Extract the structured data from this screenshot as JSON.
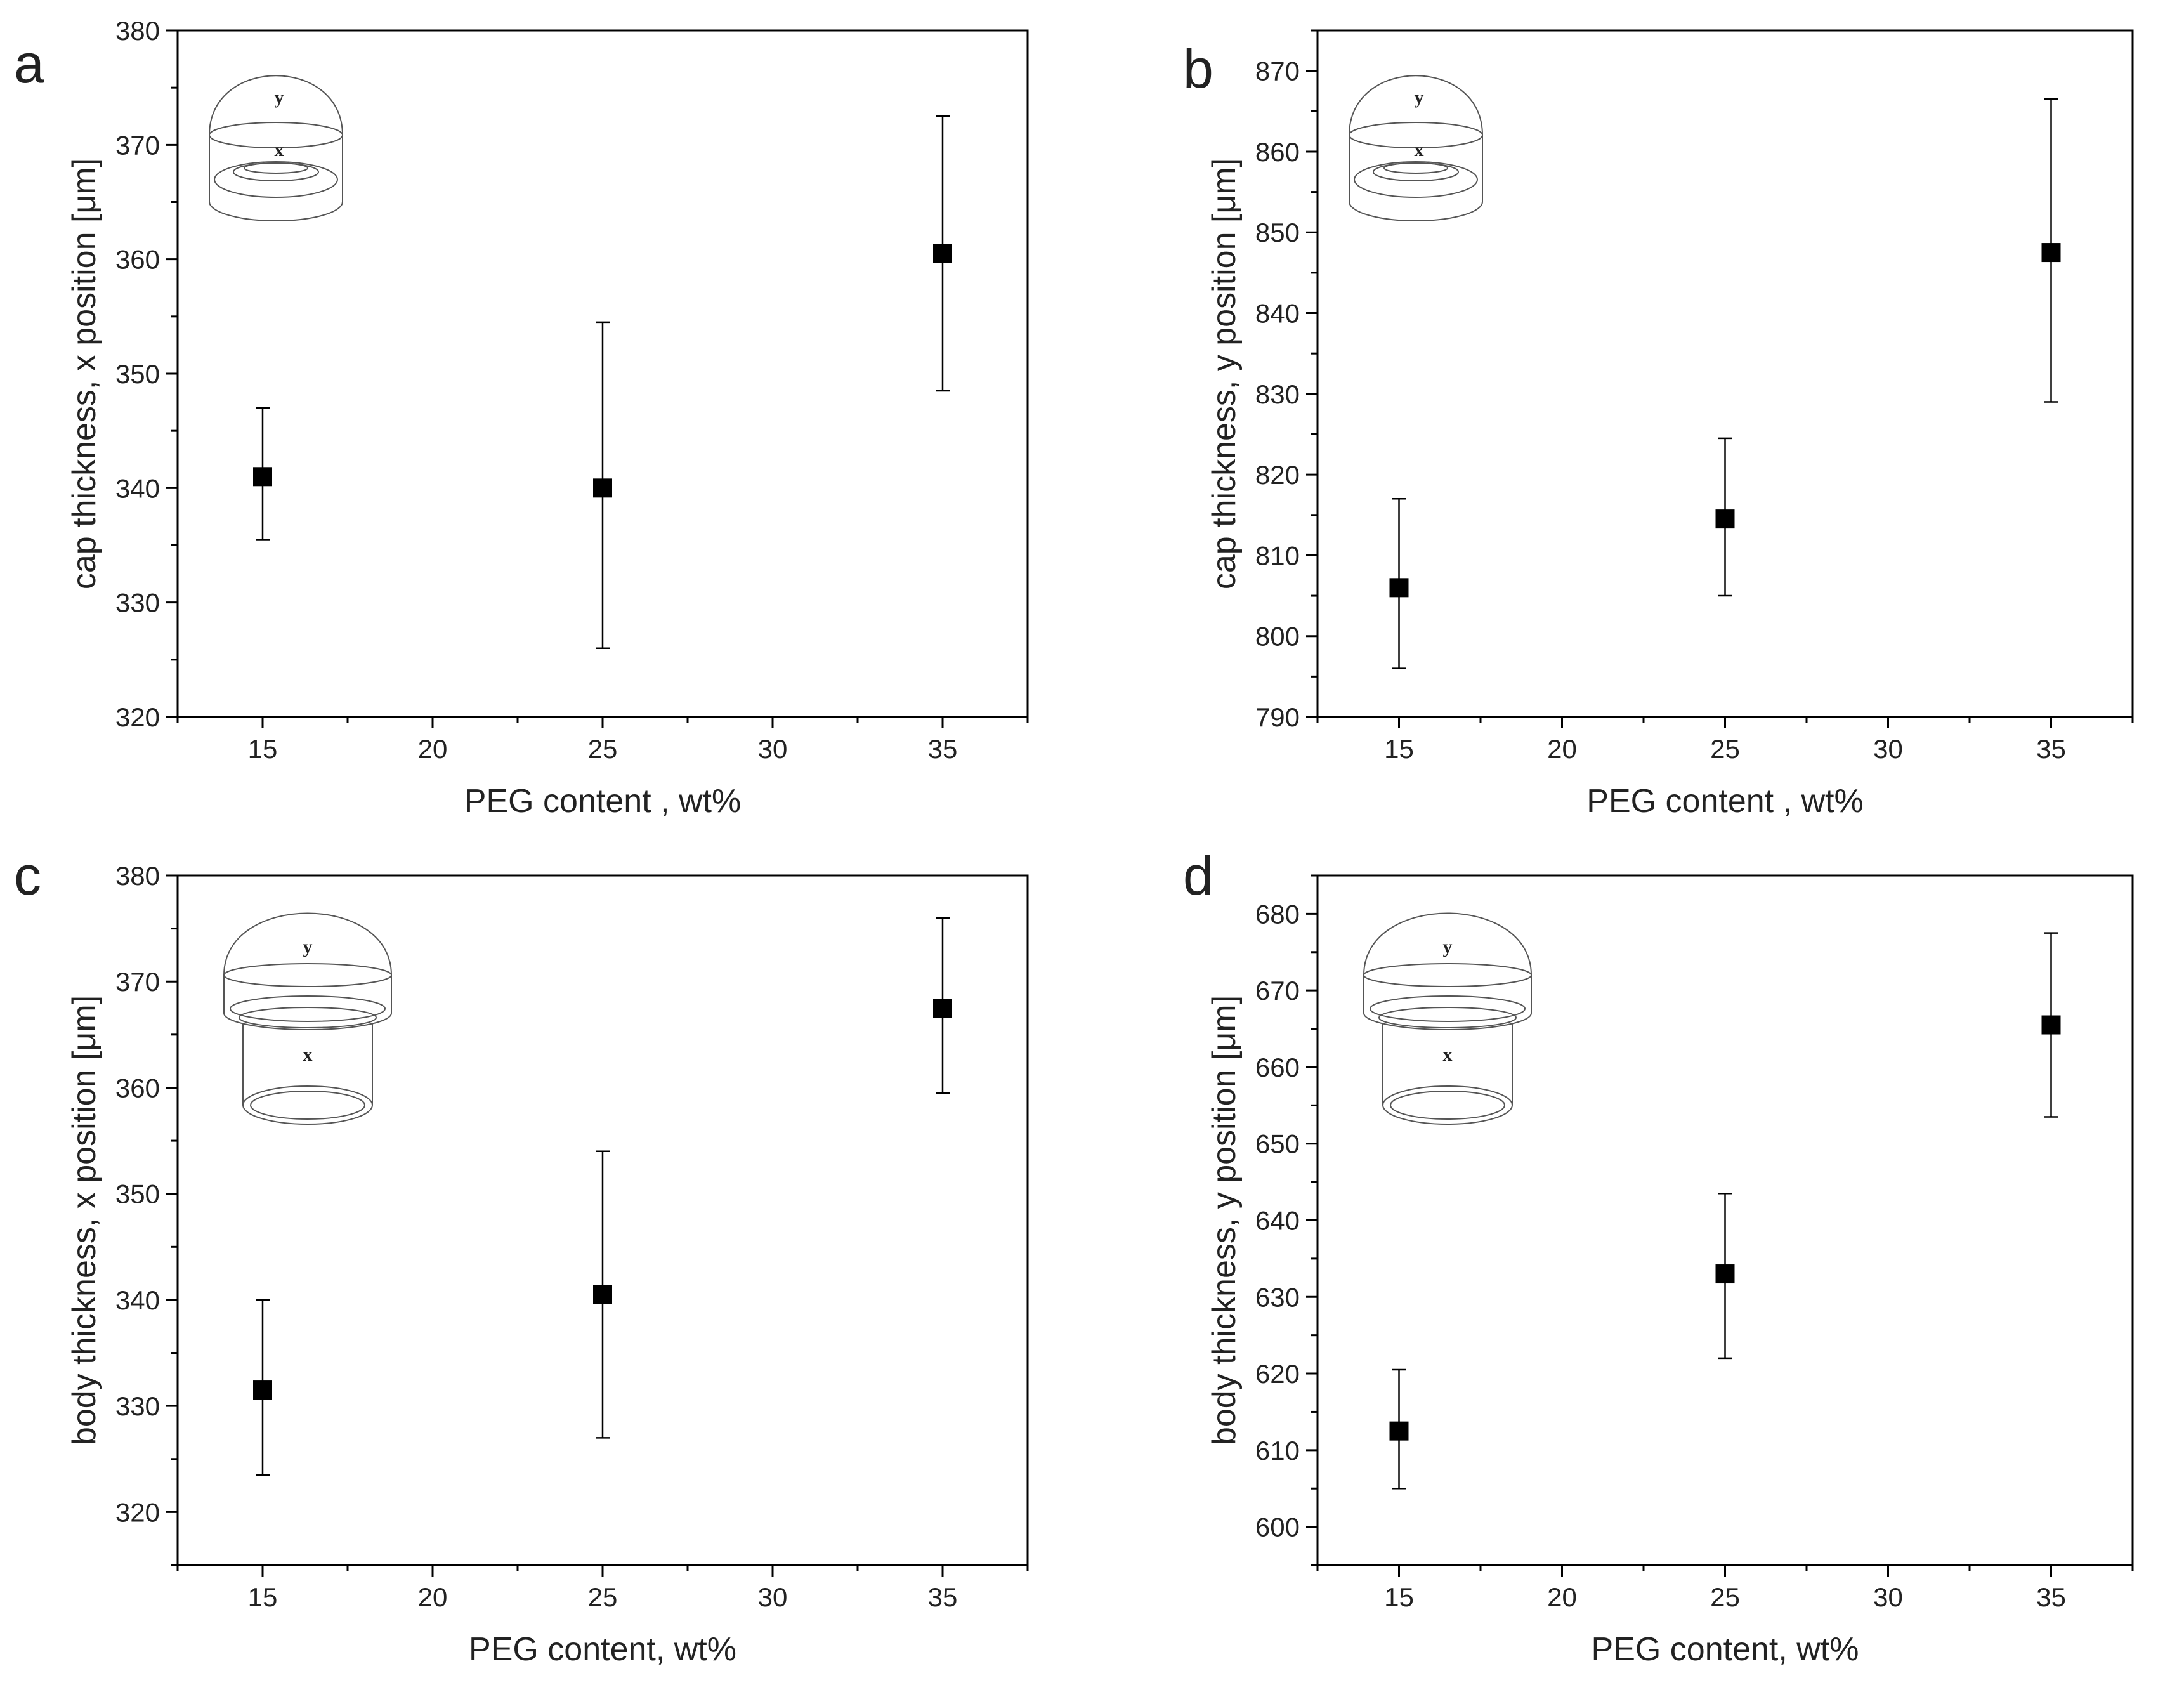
{
  "chart_data": [
    {
      "type": "scatter",
      "panel_label": "a",
      "xlabel": "PEG content , wt%",
      "ylabel": "cap thickness, x position [μm]",
      "xlim": [
        12.5,
        37.5
      ],
      "ylim": [
        320,
        380
      ],
      "x_ticks": [
        15,
        20,
        25,
        30,
        35
      ],
      "y_ticks": [
        320,
        330,
        340,
        350,
        360,
        370,
        380
      ],
      "x": [
        15,
        25,
        35
      ],
      "y": [
        341,
        340,
        360.5
      ],
      "err_low": [
        335.5,
        326,
        348.5
      ],
      "err_high": [
        347,
        354.5,
        372.5
      ],
      "inset": {
        "kind": "cap",
        "labels": [
          "y",
          "x"
        ]
      }
    },
    {
      "type": "scatter",
      "panel_label": "b",
      "xlabel": "PEG content , wt%",
      "ylabel": "cap thickness, y position [μm]",
      "xlim": [
        12.5,
        37.5
      ],
      "ylim": [
        790,
        875
      ],
      "x_ticks": [
        15,
        20,
        25,
        30,
        35
      ],
      "y_ticks": [
        790,
        800,
        810,
        820,
        830,
        840,
        850,
        860,
        870
      ],
      "x": [
        15,
        25,
        35
      ],
      "y": [
        806,
        814.5,
        847.5
      ],
      "err_low": [
        796,
        805,
        829
      ],
      "err_high": [
        817,
        824.5,
        866.5
      ],
      "inset": {
        "kind": "cap",
        "labels": [
          "y",
          "x"
        ]
      }
    },
    {
      "type": "scatter",
      "panel_label": "c",
      "xlabel": "PEG content, wt%",
      "ylabel": "body thickness, x position [μm]",
      "xlim": [
        12.5,
        37.5
      ],
      "ylim": [
        315,
        380
      ],
      "x_ticks": [
        15,
        20,
        25,
        30,
        35
      ],
      "y_ticks": [
        320,
        330,
        340,
        350,
        360,
        370,
        380
      ],
      "x": [
        15,
        25,
        35
      ],
      "y": [
        331.5,
        340.5,
        367.5
      ],
      "err_low": [
        323.5,
        327,
        359.5
      ],
      "err_high": [
        340,
        354,
        376
      ],
      "inset": {
        "kind": "body",
        "labels": [
          "y",
          "x"
        ]
      }
    },
    {
      "type": "scatter",
      "panel_label": "d",
      "xlabel": "PEG content, wt%",
      "ylabel": "body thickness, y position [μm]",
      "xlim": [
        12.5,
        37.5
      ],
      "ylim": [
        595,
        685
      ],
      "x_ticks": [
        15,
        20,
        25,
        30,
        35
      ],
      "y_ticks": [
        600,
        610,
        620,
        630,
        640,
        650,
        660,
        670,
        680
      ],
      "x": [
        15,
        25,
        35
      ],
      "y": [
        612.5,
        633,
        665.5
      ],
      "err_low": [
        605,
        622,
        653.5
      ],
      "err_high": [
        620.5,
        643.5,
        677.5
      ],
      "inset": {
        "kind": "body",
        "labels": [
          "y",
          "x"
        ]
      }
    }
  ]
}
